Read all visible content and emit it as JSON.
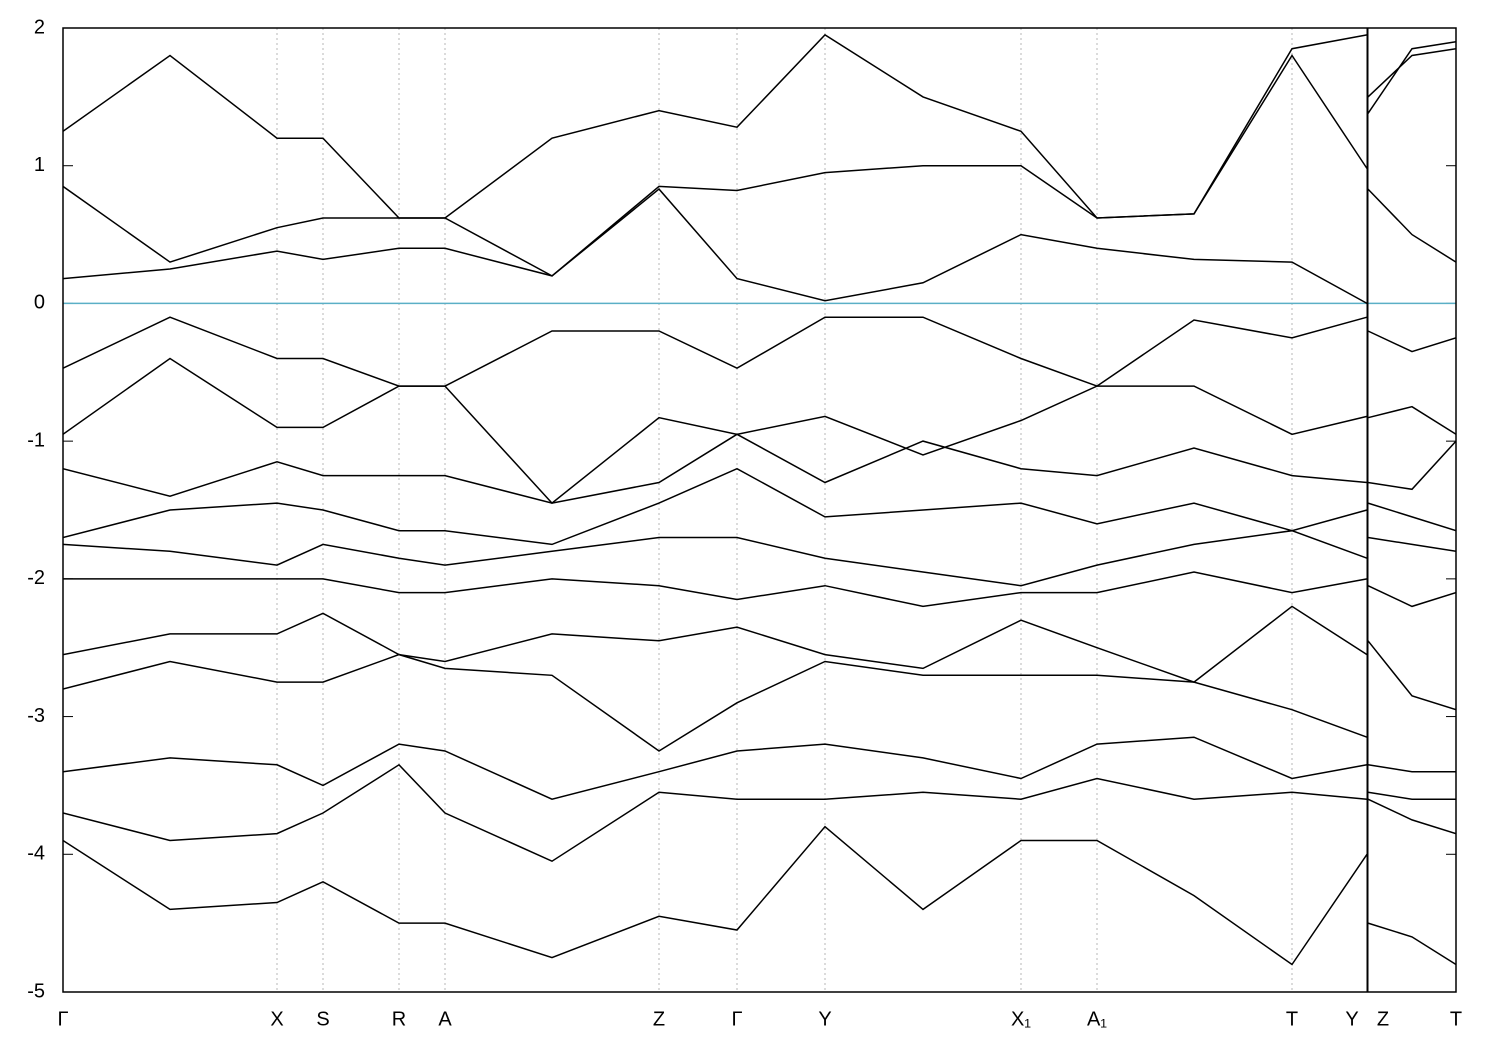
{
  "chart_data": {
    "type": "line",
    "x": [
      0,
      107,
      214,
      260,
      336,
      382,
      489,
      596,
      674,
      762,
      860,
      958,
      1034,
      1131,
      1229,
      1304,
      1304.5,
      1305,
      1349,
      1393
    ],
    "xlim": [
      0,
      1393
    ],
    "xticks": [
      {
        "value": 0,
        "label": "Γ"
      },
      {
        "value": 214,
        "label": "X"
      },
      {
        "value": 260,
        "label": "S"
      },
      {
        "value": 336,
        "label": "R"
      },
      {
        "value": 382,
        "label": "A"
      },
      {
        "value": 596,
        "label": "Z"
      },
      {
        "value": 674,
        "label": "Γ"
      },
      {
        "value": 762,
        "label": "Y"
      },
      {
        "value": 958,
        "label": "X₁"
      },
      {
        "value": 1034,
        "label": "A₁"
      },
      {
        "value": 1229,
        "label": "T"
      },
      {
        "value": 1304,
        "label": "Y"
      },
      {
        "value": 1305,
        "label": "Z"
      },
      {
        "value": 1393,
        "label": "T"
      }
    ],
    "ylim": [
      -5,
      2
    ],
    "yticks": [
      -5,
      -4,
      -3,
      -2,
      -1,
      0,
      1,
      2
    ],
    "grid": true,
    "reference_line": {
      "value": 0,
      "color": "#5aafc6"
    },
    "series": [
      {
        "color": "#000000",
        "values": [
          1.25,
          1.8,
          1.2,
          1.2,
          0.62,
          0.62,
          1.2,
          1.4,
          1.28,
          1.95,
          1.5,
          1.25,
          0.62,
          0.65,
          1.85,
          1.95,
          null,
          1.5,
          1.8,
          1.85
        ]
      },
      {
        "color": "#000000",
        "values": [
          0.85,
          0.3,
          0.55,
          0.62,
          0.62,
          0.62,
          0.2,
          0.85,
          0.82,
          0.95,
          1.0,
          1.0,
          0.62,
          0.65,
          1.8,
          0.98,
          null,
          1.38,
          1.85,
          1.9
        ]
      },
      {
        "color": "#000000",
        "values": [
          0.18,
          0.25,
          0.38,
          0.32,
          0.4,
          0.4,
          0.2,
          0.83,
          0.18,
          0.02,
          0.15,
          0.5,
          0.4,
          0.32,
          0.3,
          0.0,
          null,
          0.83,
          0.5,
          0.3
        ]
      },
      {
        "color": "#000000",
        "values": [
          -0.47,
          -0.1,
          -0.4,
          -0.4,
          -0.6,
          -0.6,
          -0.2,
          -0.2,
          -0.47,
          -0.1,
          -0.1,
          -0.4,
          -0.6,
          -0.12,
          -0.25,
          -0.1,
          null,
          -0.2,
          -0.35,
          -0.25
        ]
      },
      {
        "color": "#000000",
        "values": [
          -0.95,
          -0.4,
          -0.9,
          -0.9,
          -0.6,
          -0.6,
          -1.45,
          -0.83,
          -0.95,
          -0.82,
          -1.1,
          -0.85,
          -0.6,
          -0.6,
          -0.95,
          -0.82,
          null,
          -0.83,
          -0.75,
          -0.95
        ]
      },
      {
        "color": "#000000",
        "values": [
          -1.2,
          -1.4,
          -1.15,
          -1.25,
          -1.25,
          -1.25,
          -1.45,
          -1.3,
          -0.95,
          -1.3,
          -1.0,
          -1.2,
          -1.25,
          -1.05,
          -1.25,
          -1.3,
          null,
          -1.3,
          -1.35,
          -1.0
        ]
      },
      {
        "color": "#000000",
        "values": [
          -1.7,
          -1.5,
          -1.45,
          -1.5,
          -1.65,
          -1.65,
          -1.75,
          -1.45,
          -1.2,
          -1.55,
          -1.5,
          -1.45,
          -1.6,
          -1.45,
          -1.65,
          -1.5,
          null,
          -1.45,
          -1.55,
          -1.65
        ]
      },
      {
        "color": "#000000",
        "values": [
          -1.75,
          -1.8,
          -1.9,
          -1.75,
          -1.85,
          -1.9,
          -1.8,
          -1.7,
          -1.7,
          -1.85,
          -1.95,
          -2.05,
          -1.9,
          -1.75,
          -1.65,
          -1.85,
          null,
          -1.7,
          -1.75,
          -1.8
        ]
      },
      {
        "color": "#000000",
        "values": [
          -2.0,
          -2.0,
          -2.0,
          -2.0,
          -2.1,
          -2.1,
          -2.0,
          -2.05,
          -2.15,
          -2.05,
          -2.2,
          -2.1,
          -2.1,
          -1.95,
          -2.1,
          -2.0,
          null,
          -2.05,
          -2.2,
          -2.1
        ]
      },
      {
        "color": "#000000",
        "values": [
          -2.55,
          -2.4,
          -2.4,
          -2.25,
          -2.55,
          -2.6,
          -2.4,
          -2.45,
          -2.35,
          -2.55,
          -2.65,
          -2.3,
          -2.5,
          -2.75,
          -2.2,
          -2.55,
          null,
          -2.45,
          -2.85,
          -2.95
        ]
      },
      {
        "color": "#000000",
        "values": [
          -2.8,
          -2.6,
          -2.75,
          -2.75,
          -2.55,
          -2.65,
          -2.7,
          -3.25,
          -2.9,
          -2.6,
          -2.7,
          -2.7,
          -2.7,
          -2.75,
          -2.95,
          -3.15,
          null,
          -3.35,
          -3.4,
          -3.4
        ]
      },
      {
        "color": "#000000",
        "values": [
          -3.4,
          -3.3,
          -3.35,
          -3.5,
          -3.2,
          -3.25,
          -3.6,
          -3.4,
          -3.25,
          -3.2,
          -3.3,
          -3.45,
          -3.2,
          -3.15,
          -3.45,
          -3.35,
          null,
          -3.55,
          -3.6,
          -3.6
        ]
      },
      {
        "color": "#000000",
        "values": [
          -3.7,
          -3.9,
          -3.85,
          -3.7,
          -3.35,
          -3.7,
          -4.05,
          -3.55,
          -3.6,
          -3.6,
          -3.55,
          -3.6,
          -3.45,
          -3.6,
          -3.55,
          -3.6,
          null,
          -3.6,
          -3.75,
          -3.85
        ]
      },
      {
        "color": "#000000",
        "values": [
          -3.9,
          -4.4,
          -4.35,
          -4.2,
          -4.5,
          -4.5,
          -4.75,
          -4.45,
          -4.55,
          -3.8,
          -4.4,
          -3.9,
          -3.9,
          -4.3,
          -4.8,
          -4.0,
          null,
          -4.5,
          -4.6,
          -4.8
        ]
      }
    ]
  }
}
